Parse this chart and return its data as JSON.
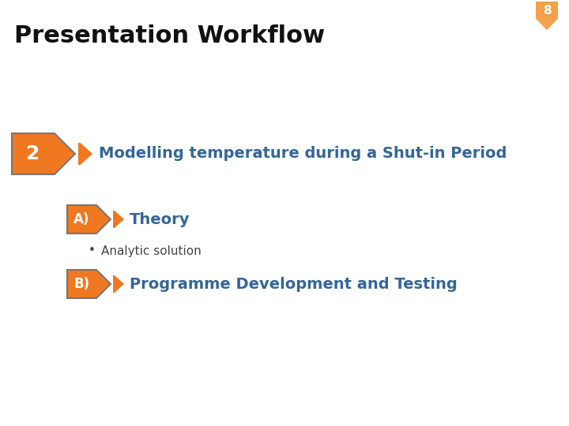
{
  "bg_color": "#ffffff",
  "title": "Presentation Workflow",
  "title_color": "#111111",
  "title_fontsize": 22,
  "title_fontweight": "bold",
  "badge_number": "8",
  "badge_color": "#f5a04a",
  "badge_text_color": "#ffffff",
  "orange_color": "#f07820",
  "teal_color": "#336699",
  "item2_label": "2",
  "item2_text": "Modelling temperature during a Shut-in Period",
  "itemA_label": "A)",
  "itemA_text": "Theory",
  "bullet_text": "Analytic solution",
  "bullet_color": "#444444",
  "itemB_label": "B)",
  "itemB_text": "Programme Development and Testing"
}
